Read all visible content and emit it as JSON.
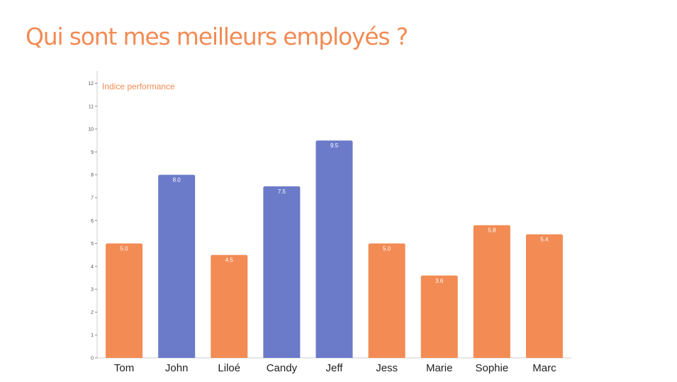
{
  "page": {
    "title": "Qui sont mes meilleurs employés ?"
  },
  "colors": {
    "accent": "#f28b54",
    "highlight": "#6b7bc9",
    "axis": "#cccccc",
    "tick_text": "#555555",
    "category_text": "#222222",
    "value_label": "#ffffff"
  },
  "chart_data": {
    "type": "bar",
    "legend_label": "Indice performance",
    "legend_placement": "top-left",
    "categories": [
      "Tom",
      "John",
      "Liloé",
      "Candy",
      "Jeff",
      "Jess",
      "Marie",
      "Sophie",
      "Marc"
    ],
    "series": [
      {
        "name": "Indice performance",
        "values": [
          5.0,
          8.0,
          4.5,
          7.5,
          9.5,
          5.0,
          3.6,
          5.8,
          5.4
        ],
        "value_labels": [
          "5.0",
          "8.0",
          "4.5",
          "7.5",
          "9.5",
          "5.0",
          "3.6",
          "5.8",
          "5.4"
        ],
        "highlighted": [
          false,
          true,
          false,
          true,
          true,
          false,
          false,
          false,
          false
        ]
      }
    ],
    "ylim": [
      0,
      12
    ],
    "yticks": [
      0,
      1,
      2,
      3,
      4,
      5,
      6,
      7,
      8,
      9,
      10,
      11,
      12
    ],
    "grid": false,
    "xlabel": "",
    "ylabel": ""
  }
}
